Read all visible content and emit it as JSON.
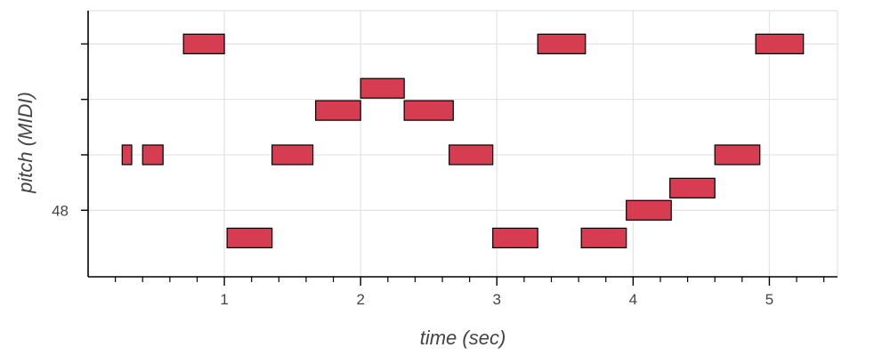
{
  "chart_data": {
    "type": "piano-roll",
    "xlabel": "time (sec)",
    "ylabel": "pitch (MIDI)",
    "xlim": [
      0.0,
      5.5
    ],
    "ylim": [
      46.8,
      51.6
    ],
    "x_ticks": [
      1,
      2,
      3,
      4,
      5
    ],
    "x_tick_labels": [
      "1",
      "2",
      "3",
      "4",
      "5"
    ],
    "y_ticks": [
      48,
      49,
      50,
      51
    ],
    "y_tick_labels": [
      "48",
      "",
      "",
      ""
    ],
    "grid": true,
    "note_color": "#d63d50",
    "note_edge_color": "#000000",
    "notes": [
      {
        "start": 0.25,
        "end": 0.32,
        "pitch": 49
      },
      {
        "start": 0.4,
        "end": 0.55,
        "pitch": 49
      },
      {
        "start": 0.7,
        "end": 1.0,
        "pitch": 51
      },
      {
        "start": 1.02,
        "end": 1.35,
        "pitch": 47.5
      },
      {
        "start": 1.35,
        "end": 1.65,
        "pitch": 49
      },
      {
        "start": 1.67,
        "end": 2.0,
        "pitch": 49.8
      },
      {
        "start": 2.0,
        "end": 2.32,
        "pitch": 50.2
      },
      {
        "start": 2.32,
        "end": 2.68,
        "pitch": 49.8
      },
      {
        "start": 2.65,
        "end": 2.97,
        "pitch": 49
      },
      {
        "start": 2.97,
        "end": 3.3,
        "pitch": 47.5
      },
      {
        "start": 3.3,
        "end": 3.65,
        "pitch": 51
      },
      {
        "start": 3.62,
        "end": 3.95,
        "pitch": 47.5
      },
      {
        "start": 3.95,
        "end": 4.28,
        "pitch": 48
      },
      {
        "start": 4.27,
        "end": 4.6,
        "pitch": 48.4
      },
      {
        "start": 4.6,
        "end": 4.93,
        "pitch": 49
      },
      {
        "start": 4.9,
        "end": 5.25,
        "pitch": 51
      }
    ]
  }
}
